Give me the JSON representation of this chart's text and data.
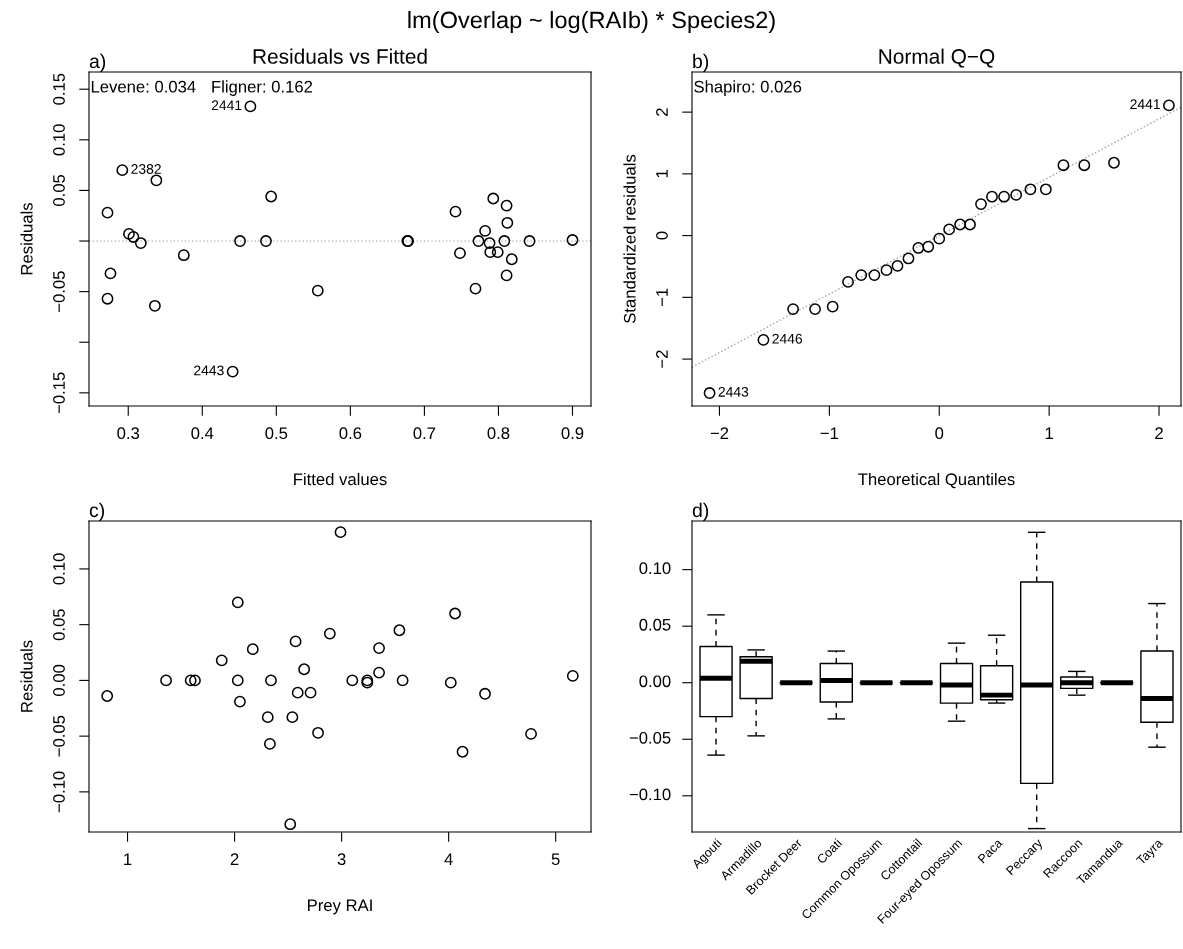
{
  "chart_data": [
    {
      "type": "other",
      "title": "lm(Overlap ~ log(RAIb) * Species2)"
    },
    {
      "type": "scatter",
      "title": "Residuals vs Fitted",
      "xlabel": "Fitted values",
      "ylabel": "Residuals",
      "marker": "circle",
      "xlim": [
        0.247,
        0.925
      ],
      "xticks": [
        0.3,
        0.4,
        0.5,
        0.6,
        0.7,
        0.8,
        0.9
      ],
      "ylim": [
        -0.163,
        0.167
      ],
      "yticks": [
        {
          "value": -0.15,
          "label": "−0.15"
        },
        {
          "value": -0.1,
          "label": null
        },
        {
          "value": -0.05,
          "label": "−0.05"
        },
        {
          "value": 0,
          "label": null
        },
        0.05,
        {
          "value": 0.1,
          "label": "0.10"
        },
        0.15
      ],
      "ref_lines": [
        {
          "axis": "y",
          "value": 0,
          "color": "#c0c0c0",
          "line_style": "dotted"
        }
      ],
      "annotations": [
        "a)",
        "Levene: 0.034",
        "Fligner: 0.162",
        {
          "text": "2441",
          "x": 0.465,
          "y": 0.133
        },
        {
          "text": "2382",
          "x": 0.292,
          "y": 0.07
        },
        {
          "text": "2443",
          "x": 0.441,
          "y": -0.129
        }
      ],
      "series": [
        {
          "type": "scatter",
          "color": "#000000",
          "x": [
            0.465,
            0.292,
            0.338,
            0.493,
            0.272,
            0.301,
            0.307,
            0.317,
            0.375,
            0.451,
            0.486,
            0.276,
            0.272,
            0.336,
            0.556,
            0.441,
            0.677,
            0.678,
            0.742,
            0.748,
            0.769,
            0.773,
            0.782,
            0.788,
            0.789,
            0.793,
            0.799,
            0.808,
            0.811,
            0.812,
            0.811,
            0.818,
            0.842,
            0.9
          ],
          "values": [
            0.133,
            0.07,
            0.06,
            0.044,
            0.028,
            0.007,
            0.004,
            -0.002,
            -0.014,
            0,
            0,
            -0.032,
            -0.057,
            -0.064,
            -0.049,
            -0.129,
            0,
            0,
            0.029,
            -0.012,
            -0.047,
            0,
            0.01,
            -0.002,
            -0.011,
            0.042,
            -0.011,
            0,
            0.035,
            0.018,
            -0.034,
            -0.018,
            0,
            0.001
          ]
        }
      ]
    },
    {
      "type": "scatter",
      "title": "Normal Q−Q",
      "xlabel": "Theoretical Quantiles",
      "ylabel": "Standardized residuals",
      "marker": "circle",
      "xlim": [
        -2.25,
        2.2
      ],
      "xticks": [
        {
          "value": -2,
          "label": "−2"
        },
        {
          "value": -1,
          "label": "−1"
        },
        0,
        1,
        2
      ],
      "ylim": [
        -2.76,
        2.65
      ],
      "yticks": [
        {
          "value": -2,
          "label": "−2"
        },
        {
          "value": -1,
          "label": "−1"
        },
        0,
        1,
        2
      ],
      "annotations": [
        "b)",
        "Shapiro: 0.026",
        {
          "text": "2441",
          "x": 2.09,
          "y": 2.11
        },
        {
          "text": "2446",
          "x": -1.6,
          "y": -1.69
        },
        {
          "text": "2443",
          "x": -2.09,
          "y": -2.55
        }
      ],
      "series": [
        {
          "type": "line",
          "color": "#a0a0a0",
          "line_style": "dotted",
          "marker": "none",
          "x": [
            -2.25,
            2.2
          ],
          "values": [
            -2.13,
            2.08
          ]
        },
        {
          "type": "scatter",
          "color": "#000000",
          "x": [
            -2.09,
            -1.6,
            -1.33,
            -1.13,
            -0.97,
            -0.83,
            -0.71,
            -0.59,
            -0.48,
            -0.38,
            -0.28,
            -0.19,
            -0.1,
            0.0,
            0.09,
            0.19,
            0.28,
            0.38,
            0.48,
            0.59,
            0.7,
            0.83,
            0.97,
            1.13,
            1.32,
            1.59,
            2.09
          ],
          "values": [
            -2.55,
            -1.69,
            -1.19,
            -1.19,
            -1.15,
            -0.75,
            -0.64,
            -0.64,
            -0.56,
            -0.49,
            -0.37,
            -0.2,
            -0.18,
            -0.05,
            0.1,
            0.18,
            0.18,
            0.51,
            0.63,
            0.63,
            0.66,
            0.75,
            0.75,
            1.14,
            1.14,
            1.18,
            2.11
          ]
        }
      ]
    },
    {
      "type": "scatter",
      "xlabel": "Prey RAI",
      "ylabel": "Residuals",
      "marker": "circle",
      "xlim": [
        0.64,
        5.33
      ],
      "xticks": [
        1,
        2,
        3,
        4,
        5
      ],
      "ylim": [
        -0.136,
        0.143
      ],
      "yticks": [
        {
          "value": -0.1,
          "label": "−0.10"
        },
        {
          "value": -0.05,
          "label": "−0.05"
        },
        {
          "value": 0,
          "label": "0.00"
        },
        0.05,
        {
          "value": 0.1,
          "label": "0.10"
        }
      ],
      "annotations": [
        "c)"
      ],
      "series": [
        {
          "type": "scatter",
          "color": "#000000",
          "x": [
            0.81,
            1.36,
            1.59,
            1.63,
            2.03,
            1.88,
            2.17,
            2.03,
            2.05,
            2.31,
            2.33,
            2.34,
            2.54,
            2.52,
            2.57,
            2.59,
            2.65,
            2.71,
            2.78,
            2.89,
            2.99,
            3.1,
            3.24,
            3.24,
            3.35,
            3.35,
            3.54,
            3.57,
            4.02,
            4.06,
            4.13,
            4.34,
            4.77,
            5.16
          ],
          "values": [
            -0.014,
            0,
            0,
            0,
            0.07,
            0.018,
            0.028,
            0,
            -0.019,
            -0.033,
            -0.057,
            0,
            -0.033,
            -0.129,
            0.035,
            -0.011,
            0.01,
            -0.011,
            -0.047,
            0.042,
            0.133,
            0,
            0,
            -0.002,
            0.029,
            0.007,
            0.045,
            0,
            -0.002,
            0.06,
            -0.064,
            -0.012,
            -0.048,
            0.004
          ]
        }
      ]
    },
    {
      "type": "box",
      "color": "#000000",
      "categories": [
        "Agouti",
        "Armadillo",
        "Brocket Deer",
        "Coati",
        "Common Opossum",
        "Cottontail",
        "Four-eyed Opossum",
        "Paca",
        "Peccary",
        "Raccoon",
        "Tamandua",
        "Tayra"
      ],
      "ylim": [
        -0.132,
        0.143
      ],
      "yticks": [
        {
          "value": -0.1,
          "label": "−0.10"
        },
        {
          "value": -0.05,
          "label": "−0.05"
        },
        {
          "value": 0,
          "label": "0.00"
        },
        0.05,
        {
          "value": 0.1,
          "label": "0.10"
        }
      ],
      "annotations": [
        "d)"
      ],
      "boxes": [
        {
          "low": -0.064,
          "q1": -0.03,
          "median": 0.004,
          "q3": 0.032,
          "high": 0.06
        },
        {
          "low": -0.047,
          "q1": -0.014,
          "median": 0.019,
          "q3": 0.023,
          "high": 0.029
        },
        {
          "low": 0,
          "q1": 0,
          "median": 0,
          "q3": 0,
          "high": 0
        },
        {
          "low": -0.032,
          "q1": -0.017,
          "median": 0.002,
          "q3": 0.017,
          "high": 0.028
        },
        {
          "low": 0,
          "q1": 0,
          "median": 0,
          "q3": 0,
          "high": 0
        },
        {
          "low": 0,
          "q1": 0,
          "median": 0,
          "q3": 0,
          "high": 0
        },
        {
          "low": -0.034,
          "q1": -0.018,
          "median": -0.002,
          "q3": 0.017,
          "high": 0.035
        },
        {
          "low": -0.018,
          "q1": -0.015,
          "median": -0.011,
          "q3": 0.015,
          "high": 0.042
        },
        {
          "low": -0.129,
          "q1": -0.089,
          "median": -0.002,
          "q3": 0.089,
          "high": 0.133
        },
        {
          "low": -0.011,
          "q1": -0.005,
          "median": 0.0,
          "q3": 0.005,
          "high": 0.01
        },
        {
          "low": 0,
          "q1": 0,
          "median": 0,
          "q3": 0,
          "high": 0
        },
        {
          "low": -0.057,
          "q1": -0.035,
          "median": -0.014,
          "q3": 0.028,
          "high": 0.07
        }
      ]
    }
  ]
}
